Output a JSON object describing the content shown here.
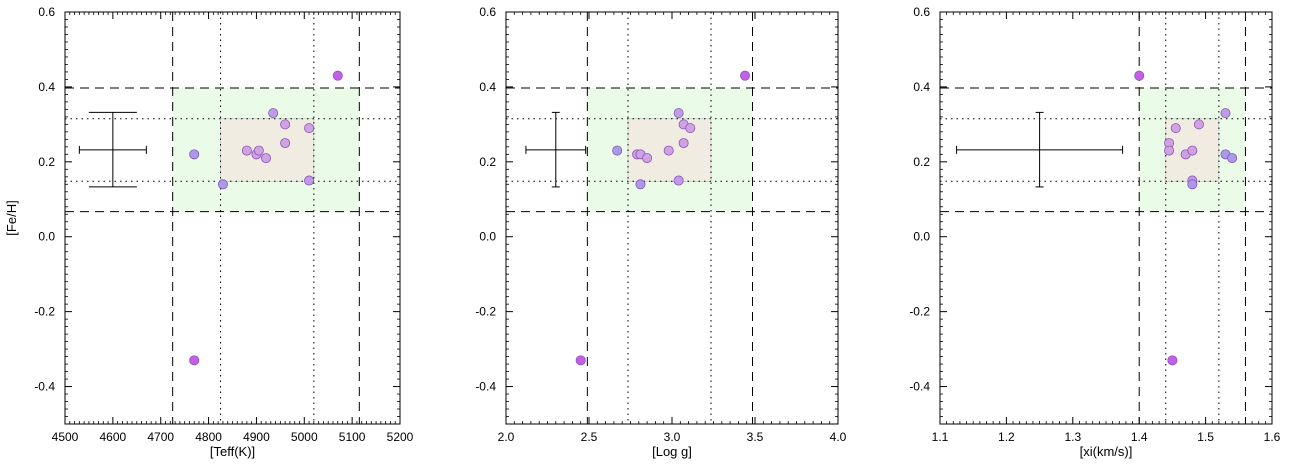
{
  "chart_data": [
    {
      "type": "scatter",
      "xlabel": "[Teff(K)]",
      "ylabel": "[Fe/H]",
      "xlim": [
        4500,
        5200
      ],
      "ylim": [
        -0.5,
        0.6
      ],
      "xticks": [
        4500,
        4600,
        4700,
        4800,
        4900,
        5000,
        5100,
        5200
      ],
      "xtick_labels": [
        "4500",
        "4600",
        "4700",
        "4800",
        "4900",
        "5000",
        "5100",
        "5200"
      ],
      "yticks": [
        -0.4,
        -0.2,
        0.0,
        0.2,
        0.4,
        0.6
      ],
      "ytick_labels": [
        "-0.4",
        "-0.2",
        "0.0",
        "0.2",
        "0.4",
        "0.6"
      ],
      "outer_box": {
        "x": [
          4725,
          5115
        ],
        "y": [
          0.067,
          0.397
        ]
      },
      "inner_box": {
        "x": [
          4825,
          5020
        ],
        "y": [
          0.148,
          0.315
        ]
      },
      "error_bar": {
        "x": 4600,
        "y": 0.232,
        "xerr": [
          4530,
          4670
        ],
        "yerr": [
          0.133,
          0.332
        ]
      },
      "points": [
        {
          "x": 4770,
          "y": 0.22,
          "color": "#a99be8"
        },
        {
          "x": 4830,
          "y": 0.14,
          "color": "#a99be8"
        },
        {
          "x": 4880,
          "y": 0.23,
          "color": "#d0a2e2"
        },
        {
          "x": 4900,
          "y": 0.22,
          "color": "#d0a2e2"
        },
        {
          "x": 4905,
          "y": 0.23,
          "color": "#d0a2e2"
        },
        {
          "x": 4920,
          "y": 0.21,
          "color": "#d0a2e2"
        },
        {
          "x": 4935,
          "y": 0.33,
          "color": "#c09ce6"
        },
        {
          "x": 4960,
          "y": 0.3,
          "color": "#d0a2e2"
        },
        {
          "x": 4960,
          "y": 0.25,
          "color": "#d0a2e2"
        },
        {
          "x": 5010,
          "y": 0.29,
          "color": "#d0a2e2"
        },
        {
          "x": 5010,
          "y": 0.15,
          "color": "#c09ce6"
        },
        {
          "x": 5070,
          "y": 0.43,
          "color": "#c65fe8"
        },
        {
          "x": 4770,
          "y": -0.33,
          "color": "#c65fe8"
        }
      ]
    },
    {
      "type": "scatter",
      "xlabel": "[Log g]",
      "ylabel": "",
      "xlim": [
        2.0,
        4.0
      ],
      "ylim": [
        -0.5,
        0.6
      ],
      "xticks": [
        2.0,
        2.5,
        3.0,
        3.5,
        4.0
      ],
      "xtick_labels": [
        "2.0",
        "2.5",
        "3.0",
        "3.5",
        "4.0"
      ],
      "yticks": [
        -0.4,
        -0.2,
        0.0,
        0.2,
        0.4,
        0.6
      ],
      "ytick_labels": [
        "-0.4",
        "-0.2",
        "0.0",
        "0.2",
        "0.4",
        "0.6"
      ],
      "outer_box": {
        "x": [
          2.49,
          3.485
        ],
        "y": [
          0.067,
          0.397
        ]
      },
      "inner_box": {
        "x": [
          2.735,
          3.235
        ],
        "y": [
          0.148,
          0.315
        ]
      },
      "error_bar": {
        "x": 2.3,
        "y": 0.232,
        "xerr": [
          2.12,
          2.48
        ],
        "yerr": [
          0.133,
          0.332
        ]
      },
      "points": [
        {
          "x": 2.67,
          "y": 0.23,
          "color": "#a99be8"
        },
        {
          "x": 2.79,
          "y": 0.22,
          "color": "#d0a2e2"
        },
        {
          "x": 2.81,
          "y": 0.22,
          "color": "#d0a2e2"
        },
        {
          "x": 2.81,
          "y": 0.14,
          "color": "#a99be8"
        },
        {
          "x": 2.85,
          "y": 0.21,
          "color": "#d0a2e2"
        },
        {
          "x": 2.98,
          "y": 0.23,
          "color": "#d0a2e2"
        },
        {
          "x": 3.04,
          "y": 0.33,
          "color": "#c09ce6"
        },
        {
          "x": 3.04,
          "y": 0.15,
          "color": "#c09ce6"
        },
        {
          "x": 3.07,
          "y": 0.3,
          "color": "#d0a2e2"
        },
        {
          "x": 3.07,
          "y": 0.25,
          "color": "#d0a2e2"
        },
        {
          "x": 3.11,
          "y": 0.29,
          "color": "#d0a2e2"
        },
        {
          "x": 3.44,
          "y": 0.43,
          "color": "#c65fe8"
        },
        {
          "x": 2.45,
          "y": -0.33,
          "color": "#c65fe8"
        }
      ]
    },
    {
      "type": "scatter",
      "xlabel": "[xi(km/s)]",
      "ylabel": "",
      "xlim": [
        1.1,
        1.6
      ],
      "ylim": [
        -0.5,
        0.6
      ],
      "xticks": [
        1.1,
        1.2,
        1.3,
        1.4,
        1.5,
        1.6
      ],
      "xtick_labels": [
        "1.1",
        "1.2",
        "1.3",
        "1.4",
        "1.5",
        "1.6"
      ],
      "yticks": [
        -0.4,
        -0.2,
        0.0,
        0.2,
        0.4,
        0.6
      ],
      "ytick_labels": [
        "-0.4",
        "-0.2",
        "0.0",
        "0.2",
        "0.4",
        "0.6"
      ],
      "outer_box": {
        "x": [
          1.4,
          1.56
        ],
        "y": [
          0.067,
          0.397
        ]
      },
      "inner_box": {
        "x": [
          1.44,
          1.52
        ],
        "y": [
          0.148,
          0.315
        ]
      },
      "error_bar": {
        "x": 1.25,
        "y": 0.232,
        "xerr": [
          1.125,
          1.375
        ],
        "yerr": [
          0.133,
          0.332
        ]
      },
      "points": [
        {
          "x": 1.4,
          "y": 0.43,
          "color": "#c65fe8"
        },
        {
          "x": 1.445,
          "y": 0.25,
          "color": "#d0a2e2"
        },
        {
          "x": 1.445,
          "y": 0.23,
          "color": "#d0a2e2"
        },
        {
          "x": 1.455,
          "y": 0.29,
          "color": "#d0a2e2"
        },
        {
          "x": 1.47,
          "y": 0.22,
          "color": "#d0a2e2"
        },
        {
          "x": 1.48,
          "y": 0.23,
          "color": "#d0a2e2"
        },
        {
          "x": 1.48,
          "y": 0.15,
          "color": "#c09ce6"
        },
        {
          "x": 1.48,
          "y": 0.14,
          "color": "#a99be8"
        },
        {
          "x": 1.49,
          "y": 0.3,
          "color": "#d0a2e2"
        },
        {
          "x": 1.53,
          "y": 0.33,
          "color": "#c09ce6"
        },
        {
          "x": 1.53,
          "y": 0.22,
          "color": "#a99be8"
        },
        {
          "x": 1.54,
          "y": 0.21,
          "color": "#a99be8"
        },
        {
          "x": 1.45,
          "y": -0.33,
          "color": "#c65fe8"
        }
      ]
    }
  ],
  "style": {
    "outer_box_fill": "#eafbe8",
    "inner_box_fill": "#f1ece2",
    "point_stroke": "#8a56b8"
  }
}
